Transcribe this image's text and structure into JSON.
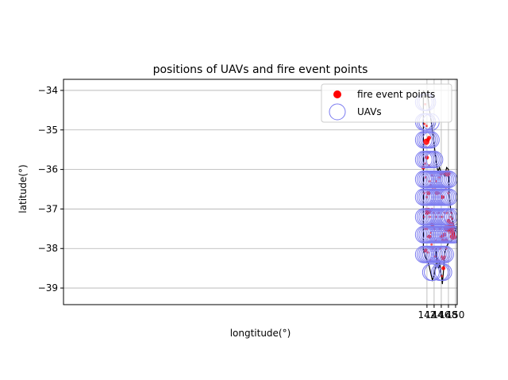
{
  "chart_data": {
    "type": "scatter",
    "title": "positions of UAVs and fire event points",
    "xlabel": "longtitude(°)",
    "ylabel": "latitude(°)",
    "xlim": [
      40.45,
      150.45
    ],
    "ylim": [
      -39.42,
      -33.72
    ],
    "xticks": [
      142,
      144,
      146,
      148,
      150
    ],
    "xtick_labels": [
      "142",
      "144",
      "146",
      "148",
      "150"
    ],
    "yticks": [
      -34,
      -35,
      -36,
      -37,
      -38,
      -39
    ],
    "ytick_labels": [
      "−34",
      "−35",
      "−36",
      "−37",
      "−38",
      "−39"
    ],
    "grid": true,
    "legend_position": "top-right",
    "legend": [
      {
        "label": "fire event points",
        "marker": "filled-circle",
        "color": "#ff0000"
      },
      {
        "label": "UAVs",
        "marker": "hollow-circle",
        "color": "#7b7bf0"
      }
    ],
    "boundary": [
      [
        141.0,
        -34.0
      ],
      [
        141.5,
        -34.1
      ],
      [
        142.3,
        -34.2
      ],
      [
        142.7,
        -34.5
      ],
      [
        143.2,
        -34.8
      ],
      [
        143.8,
        -35.2
      ],
      [
        144.3,
        -35.6
      ],
      [
        144.7,
        -35.9
      ],
      [
        145.1,
        -36.05
      ],
      [
        145.5,
        -35.95
      ],
      [
        146.0,
        -36.1
      ],
      [
        146.5,
        -36.05
      ],
      [
        147.0,
        -36.15
      ],
      [
        147.5,
        -35.95
      ],
      [
        148.0,
        -36.0
      ],
      [
        148.2,
        -36.6
      ],
      [
        148.6,
        -37.0
      ],
      [
        149.2,
        -37.3
      ],
      [
        149.6,
        -37.45
      ],
      [
        150.0,
        -37.5
      ],
      [
        149.4,
        -37.7
      ],
      [
        148.8,
        -37.8
      ],
      [
        148.0,
        -37.85
      ],
      [
        147.5,
        -37.95
      ],
      [
        147.0,
        -38.1
      ],
      [
        146.6,
        -38.6
      ],
      [
        146.3,
        -38.9
      ],
      [
        146.1,
        -38.7
      ],
      [
        145.8,
        -38.6
      ],
      [
        145.5,
        -38.3
      ],
      [
        145.3,
        -38.5
      ],
      [
        145.0,
        -38.4
      ],
      [
        144.8,
        -38.2
      ],
      [
        144.5,
        -38.0
      ],
      [
        144.7,
        -38.3
      ],
      [
        144.4,
        -38.5
      ],
      [
        143.9,
        -38.7
      ],
      [
        143.5,
        -38.8
      ],
      [
        143.0,
        -38.6
      ],
      [
        142.5,
        -38.4
      ],
      [
        142.0,
        -38.3
      ],
      [
        141.5,
        -38.2
      ],
      [
        141.0,
        -38.05
      ],
      [
        141.0,
        -34.0
      ]
    ],
    "uavs": {
      "rows": [
        {
          "lat": -34.3,
          "lons": [
            141.1,
            141.6,
            142.1
          ]
        },
        {
          "lat": -34.8,
          "lons": [
            141.1,
            141.6,
            142.1,
            143.1
          ]
        },
        {
          "lat": -35.25,
          "lons": [
            141.1,
            141.6,
            142.1,
            142.6,
            143.1
          ]
        },
        {
          "lat": -35.75,
          "lons": [
            141.1,
            141.6,
            142.1,
            142.6,
            143.1,
            143.6,
            144.1
          ]
        },
        {
          "lat": -36.25,
          "lons": [
            141.1,
            141.6,
            142.1,
            142.6,
            143.1,
            143.6,
            144.1,
            144.6,
            145.1,
            145.6,
            146.1,
            146.6,
            147.1,
            147.6,
            148.1
          ]
        },
        {
          "lat": -36.7,
          "lons": [
            141.1,
            141.6,
            142.1,
            142.6,
            143.1,
            143.6,
            144.1,
            144.6,
            145.1,
            145.6,
            146.1,
            146.6,
            147.1,
            147.6,
            148.1
          ]
        },
        {
          "lat": -37.2,
          "lons": [
            141.1,
            141.6,
            142.1,
            142.6,
            143.1,
            143.6,
            144.1,
            144.6,
            145.1,
            145.6,
            146.1,
            146.6,
            147.1,
            147.6,
            148.1,
            149.1
          ]
        },
        {
          "lat": -37.65,
          "lons": [
            141.1,
            141.6,
            142.1,
            142.6,
            143.1,
            143.6,
            144.1,
            144.6,
            145.1,
            145.6,
            146.1,
            146.6,
            147.1,
            147.6,
            148.1,
            148.6,
            149.1,
            149.6
          ]
        },
        {
          "lat": -38.15,
          "lons": [
            141.1,
            141.6,
            142.1,
            142.6,
            143.1,
            143.6,
            144.1,
            144.6,
            145.1,
            145.6,
            146.1,
            146.6,
            147.1
          ]
        },
        {
          "lat": -38.6,
          "lons": [
            143.1,
            143.6,
            145.6,
            146.1,
            146.6
          ]
        }
      ]
    },
    "fire_points": [
      [
        141.5,
        -34.35,
        1
      ],
      [
        141.3,
        -34.85,
        1
      ],
      [
        141.9,
        -34.9,
        1
      ],
      [
        141.8,
        -35.3,
        3
      ],
      [
        142.3,
        -35.25,
        2
      ],
      [
        142.6,
        -35.2,
        2
      ],
      [
        141.5,
        -35.85,
        1
      ],
      [
        142.0,
        -35.7,
        2
      ],
      [
        141.0,
        -35.95,
        2
      ],
      [
        142.6,
        -35.9,
        1
      ],
      [
        141.6,
        -36.2,
        1
      ],
      [
        142.8,
        -36.3,
        1
      ],
      [
        143.5,
        -36.15,
        1
      ],
      [
        144.6,
        -36.3,
        1
      ],
      [
        145.4,
        -36.2,
        1
      ],
      [
        146.0,
        -36.1,
        2
      ],
      [
        146.6,
        -36.1,
        1
      ],
      [
        147.7,
        -36.1,
        3
      ],
      [
        141.2,
        -36.6,
        1
      ],
      [
        141.9,
        -36.7,
        1
      ],
      [
        142.4,
        -36.6,
        2
      ],
      [
        143.0,
        -36.4,
        1
      ],
      [
        143.6,
        -36.5,
        1
      ],
      [
        144.3,
        -36.5,
        1
      ],
      [
        144.8,
        -36.6,
        2
      ],
      [
        145.5,
        -36.6,
        1
      ],
      [
        146.3,
        -36.7,
        2
      ],
      [
        146.6,
        -36.7,
        1
      ],
      [
        147.3,
        -36.5,
        1
      ],
      [
        148.0,
        -36.6,
        1
      ],
      [
        141.2,
        -37.2,
        1
      ],
      [
        141.7,
        -37.0,
        1
      ],
      [
        142.0,
        -37.1,
        2
      ],
      [
        142.4,
        -37.05,
        3
      ],
      [
        142.8,
        -37.2,
        1
      ],
      [
        143.4,
        -37.0,
        1
      ],
      [
        143.9,
        -37.1,
        1
      ],
      [
        144.5,
        -37.2,
        1
      ],
      [
        145.2,
        -37.1,
        1
      ],
      [
        145.8,
        -37.2,
        1
      ],
      [
        146.3,
        -37.2,
        1
      ],
      [
        146.9,
        -37.1,
        1
      ],
      [
        147.6,
        -37.1,
        1
      ],
      [
        148.0,
        -37.3,
        2
      ],
      [
        148.5,
        -37.2,
        1
      ],
      [
        148.8,
        -37.1,
        1
      ],
      [
        149.0,
        -37.25,
        1
      ],
      [
        141.5,
        -37.5,
        1
      ],
      [
        142.0,
        -37.5,
        1
      ],
      [
        142.3,
        -37.7,
        1
      ],
      [
        142.7,
        -37.7,
        2
      ],
      [
        143.0,
        -37.6,
        1
      ],
      [
        143.5,
        -37.4,
        2
      ],
      [
        144.0,
        -37.5,
        1
      ],
      [
        144.5,
        -37.8,
        1
      ],
      [
        145.6,
        -37.5,
        1
      ],
      [
        146.1,
        -37.7,
        2
      ],
      [
        146.5,
        -37.8,
        2
      ],
      [
        146.9,
        -37.65,
        2
      ],
      [
        147.1,
        -37.45,
        1
      ],
      [
        147.4,
        -37.8,
        2
      ],
      [
        147.6,
        -37.5,
        3
      ],
      [
        148.1,
        -37.5,
        2
      ],
      [
        148.3,
        -37.5,
        3
      ],
      [
        148.4,
        -37.6,
        1
      ],
      [
        148.7,
        -37.4,
        3
      ],
      [
        148.8,
        -37.5,
        3
      ],
      [
        149.2,
        -37.6,
        2
      ],
      [
        149.3,
        -37.7,
        3
      ],
      [
        141.6,
        -38.05,
        2
      ],
      [
        142.3,
        -38.1,
        1
      ],
      [
        142.9,
        -38.3,
        1
      ],
      [
        143.3,
        -37.9,
        1
      ],
      [
        143.6,
        -38.0,
        1
      ],
      [
        144.3,
        -38.2,
        1
      ],
      [
        145.0,
        -38.3,
        1
      ],
      [
        145.7,
        -38.0,
        1
      ],
      [
        146.1,
        -38.2,
        1
      ],
      [
        146.5,
        -38.25,
        2
      ],
      [
        146.9,
        -38.2,
        1
      ],
      [
        147.4,
        -38.0,
        1
      ],
      [
        146.6,
        -38.5,
        2
      ],
      [
        146.2,
        -38.7,
        1
      ]
    ],
    "colors": {
      "fire": "#ff0000",
      "uav": "#7b7bf0",
      "boundary": "#000000",
      "grid": "#b0b0b0",
      "axes": "#000000",
      "background": "#ffffff"
    }
  }
}
